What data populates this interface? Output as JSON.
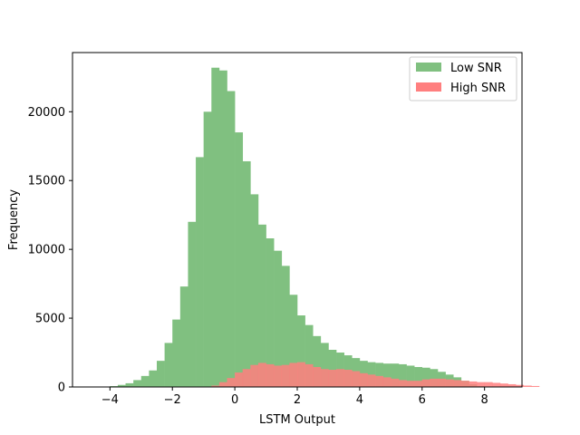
{
  "chart_data": {
    "type": "bar",
    "subtype": "overlapping-histogram",
    "xlabel": "LSTM Output",
    "ylabel": "Frequency",
    "xlim": [
      -5.2,
      9.2
    ],
    "ylim": [
      0,
      24300
    ],
    "xticks": [
      -4,
      -2,
      0,
      2,
      4,
      6,
      8
    ],
    "yticks": [
      0,
      5000,
      10000,
      15000,
      20000
    ],
    "tick_labels_x": [
      "−4",
      "−2",
      "0",
      "2",
      "4",
      "6",
      "8"
    ],
    "tick_labels_y": [
      "0",
      "5000",
      "10000",
      "15000",
      "20000"
    ],
    "bin_width": 0.25,
    "legend_position": "top-right",
    "series": [
      {
        "name": "Low SNR",
        "color": "#80c080",
        "bin_start": -4.25,
        "values": [
          20,
          60,
          150,
          270,
          500,
          800,
          1200,
          1900,
          3200,
          4900,
          7300,
          12000,
          16700,
          20000,
          23200,
          23000,
          21500,
          18500,
          16400,
          14000,
          11800,
          10800,
          9900,
          8800,
          6700,
          5200,
          4500,
          3700,
          3200,
          2700,
          2500,
          2300,
          2100,
          1900,
          1800,
          1750,
          1700,
          1700,
          1650,
          1550,
          1450,
          1400,
          1300,
          1100,
          900,
          700,
          450,
          200,
          60
        ]
      },
      {
        "name": "High SNR",
        "color": "#ff7f7f",
        "bin_start": -1.25,
        "values": [
          5,
          30,
          100,
          350,
          650,
          1050,
          1300,
          1600,
          1750,
          1650,
          1550,
          1600,
          1750,
          1800,
          1650,
          1450,
          1300,
          1250,
          1300,
          1250,
          1150,
          1000,
          900,
          800,
          700,
          600,
          500,
          450,
          450,
          550,
          600,
          600,
          550,
          500,
          450,
          400,
          350,
          350,
          300,
          250,
          200,
          150,
          100,
          70
        ]
      }
    ]
  }
}
